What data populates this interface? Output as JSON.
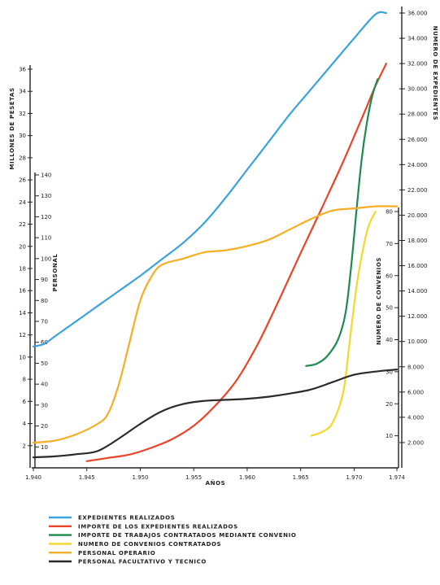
{
  "chart_data": {
    "type": "line",
    "xlabel": "AÑOS",
    "x_ticks": [
      "1.940",
      "1.945",
      "1.950",
      "1.955",
      "1.960",
      "1.965",
      "1.970",
      "1.974"
    ],
    "xlim": [
      1940,
      1974
    ],
    "axes": {
      "millones": {
        "label": "MILLONES DE PESETAS",
        "range": [
          0,
          38
        ],
        "ticks": [
          2,
          4,
          6,
          8,
          10,
          12,
          14,
          16,
          18,
          20,
          22,
          24,
          26,
          28,
          30,
          32,
          34,
          36
        ]
      },
      "personal": {
        "label": "PERSONAL",
        "range": [
          0,
          148
        ],
        "ticks": [
          10,
          20,
          30,
          40,
          50,
          60,
          70,
          80,
          90,
          100,
          110,
          120,
          130,
          140
        ]
      },
      "expedientes": {
        "label": "NUMERO DE EXPEDIENTES",
        "range": [
          0,
          36000
        ],
        "ticks": [
          "2.000",
          "4.000",
          "6.000",
          "8.000",
          "10.000",
          "12.000",
          "14.000",
          "16.000",
          "18.000",
          "20.000",
          "22.000",
          "24.000",
          "26.000",
          "28.000",
          "30.000",
          "32.000",
          "34.000",
          "36.000"
        ]
      },
      "convenios": {
        "label": "NUMERO DE CONVENIOS",
        "range": [
          0,
          84
        ],
        "ticks": [
          10,
          20,
          30,
          40,
          50,
          60,
          70,
          80
        ]
      }
    },
    "series": [
      {
        "name": "EXPEDIENTES REALIZADOS",
        "color": "#3ba3dc",
        "axis": "expedientes",
        "points": [
          [
            1940,
            9600
          ],
          [
            1941,
            9800
          ],
          [
            1942,
            10400
          ],
          [
            1944,
            11600
          ],
          [
            1946,
            12800
          ],
          [
            1948,
            14000
          ],
          [
            1950,
            15200
          ],
          [
            1952,
            16500
          ],
          [
            1954,
            17800
          ],
          [
            1956,
            19400
          ],
          [
            1958,
            21400
          ],
          [
            1960,
            23600
          ],
          [
            1962,
            25800
          ],
          [
            1964,
            28000
          ],
          [
            1966,
            30000
          ],
          [
            1968,
            32000
          ],
          [
            1970,
            34000
          ],
          [
            1972,
            35900
          ],
          [
            1973,
            36000
          ]
        ]
      },
      {
        "name": "IMPORTE DE LOS EXPEDIENTES REALIZADOS",
        "color": "#e8452a",
        "axis": "millones",
        "points": [
          [
            1945,
            0.6
          ],
          [
            1947,
            0.9
          ],
          [
            1949,
            1.2
          ],
          [
            1951,
            1.8
          ],
          [
            1953,
            2.6
          ],
          [
            1955,
            3.8
          ],
          [
            1957,
            5.6
          ],
          [
            1959,
            7.9
          ],
          [
            1961,
            11.2
          ],
          [
            1963,
            15.2
          ],
          [
            1965,
            19.4
          ],
          [
            1967,
            23.5
          ],
          [
            1969,
            27.7
          ],
          [
            1971,
            32.2
          ],
          [
            1972,
            34.5
          ],
          [
            1973,
            36.5
          ]
        ]
      },
      {
        "name": "IMPORTE DE TRABAJOS CONTRATADOS MEDIANTE CONVENIO",
        "color": "#1f8a4e",
        "axis": "millones",
        "points": [
          [
            1965.5,
            9.2
          ],
          [
            1966.5,
            9.4
          ],
          [
            1967.5,
            10.1
          ],
          [
            1968.5,
            11.6
          ],
          [
            1969.2,
            14.0
          ],
          [
            1969.7,
            18.0
          ],
          [
            1970.2,
            23.0
          ],
          [
            1970.7,
            27.8
          ],
          [
            1971.2,
            31.2
          ],
          [
            1971.7,
            33.6
          ],
          [
            1972.2,
            35.1
          ]
        ]
      },
      {
        "name": "NUMERO DE CONVENIOS CONTRATADOS",
        "color": "#f2d82c",
        "axis": "convenios",
        "points": [
          [
            1966,
            10.0
          ],
          [
            1967,
            11.2
          ],
          [
            1968,
            14.2
          ],
          [
            1969,
            24.0
          ],
          [
            1969.6,
            40.0
          ],
          [
            1970.2,
            56.0
          ],
          [
            1970.7,
            66.0
          ],
          [
            1971.3,
            75.0
          ],
          [
            1972,
            80.0
          ]
        ]
      },
      {
        "name": "PERSONAL OPERARIO",
        "color": "#f5ae26",
        "axis": "personal",
        "points": [
          [
            1940,
            12.0
          ],
          [
            1942,
            13.0
          ],
          [
            1944,
            16.0
          ],
          [
            1946,
            21.0
          ],
          [
            1947,
            26.0
          ],
          [
            1948,
            40.0
          ],
          [
            1949,
            60.0
          ],
          [
            1950,
            80.0
          ],
          [
            1951,
            91.0
          ],
          [
            1952,
            97.0
          ],
          [
            1954,
            100.0
          ],
          [
            1956,
            103.0
          ],
          [
            1958,
            104.0
          ],
          [
            1960,
            106.0
          ],
          [
            1962,
            109.0
          ],
          [
            1964,
            114.0
          ],
          [
            1966,
            119.0
          ],
          [
            1968,
            123.0
          ],
          [
            1970,
            124.0
          ],
          [
            1972,
            125.0
          ],
          [
            1974,
            125.0
          ]
        ]
      },
      {
        "name": "PERSONAL FACULTATIVO Y TECNICO",
        "color": "#2b2b2b",
        "axis": "personal",
        "points": [
          [
            1940,
            5.0
          ],
          [
            1942,
            5.5
          ],
          [
            1944,
            6.5
          ],
          [
            1946,
            8.0
          ],
          [
            1948,
            14.0
          ],
          [
            1950,
            21.0
          ],
          [
            1952,
            27.0
          ],
          [
            1954,
            30.5
          ],
          [
            1956,
            32.0
          ],
          [
            1958,
            32.5
          ],
          [
            1960,
            33.0
          ],
          [
            1962,
            34.0
          ],
          [
            1964,
            35.5
          ],
          [
            1966,
            37.5
          ],
          [
            1968,
            41.0
          ],
          [
            1970,
            44.5
          ],
          [
            1972,
            46.0
          ],
          [
            1974,
            47.0
          ]
        ]
      }
    ]
  }
}
